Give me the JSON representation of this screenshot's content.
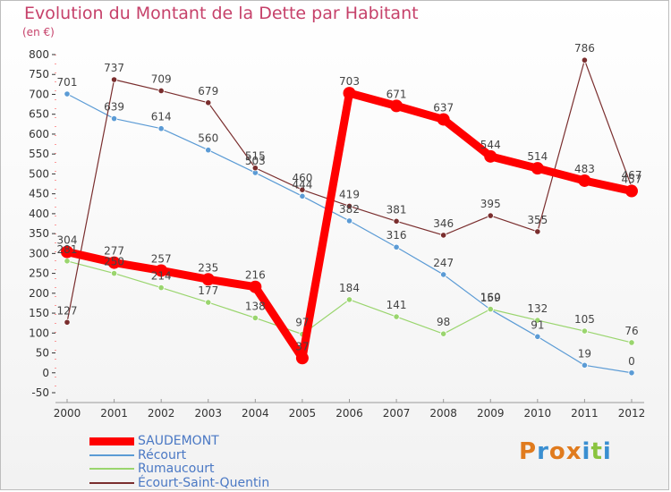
{
  "header": {
    "title": "Evolution du Montant de la Dette par Habitant",
    "unit": "(en €)"
  },
  "logo": {
    "text": "Proxiti",
    "letters": [
      {
        "ch": "P",
        "color": "#e07b1e"
      },
      {
        "ch": "r",
        "color": "#3a8fd1"
      },
      {
        "ch": "o",
        "color": "#e07b1e"
      },
      {
        "ch": "x",
        "color": "#e07b1e"
      },
      {
        "ch": "i",
        "color": "#3a8fd1"
      },
      {
        "ch": "t",
        "color": "#8ac43f"
      },
      {
        "ch": "i",
        "color": "#3a8fd1"
      }
    ]
  },
  "chart_data": {
    "type": "line",
    "title": "Evolution du Montant de la Dette par Habitant",
    "ylabel": "(en €)",
    "x": [
      2000,
      2001,
      2002,
      2003,
      2004,
      2005,
      2006,
      2007,
      2008,
      2009,
      2010,
      2011,
      2012
    ],
    "ylim": [
      -50,
      800
    ],
    "yticks": [
      -50,
      0,
      50,
      100,
      150,
      200,
      250,
      300,
      350,
      400,
      450,
      500,
      550,
      600,
      650,
      700,
      750,
      800
    ],
    "grid": false,
    "legend": "bottom-left",
    "series": [
      {
        "name": "SAUDEMONT",
        "color": "#ff0000",
        "values": [
          304,
          277,
          257,
          235,
          216,
          37,
          703,
          671,
          637,
          544,
          514,
          483,
          457
        ],
        "labels": [
          "304",
          "277",
          "257",
          "235",
          "216",
          "37",
          "703",
          "671",
          "637",
          "544",
          "514",
          "483",
          "457"
        ]
      },
      {
        "name": "Récourt",
        "color": "#5b9bd5",
        "values": [
          701,
          639,
          614,
          560,
          503,
          444,
          382,
          316,
          247,
          159,
          91,
          19,
          0
        ],
        "labels": [
          "701",
          "639",
          "614",
          "560",
          "503",
          "444",
          "382",
          "316",
          "247",
          "159",
          "91",
          "19",
          "0"
        ]
      },
      {
        "name": "Rumaucourt",
        "color": "#9ad56e",
        "values": [
          281,
          250,
          214,
          177,
          138,
          97,
          184,
          141,
          98,
          160,
          132,
          105,
          76
        ],
        "labels": [
          "281",
          "250",
          "214",
          "177",
          "138",
          "97",
          "184",
          "141",
          "98",
          "160",
          "132",
          "105",
          "76"
        ]
      },
      {
        "name": "Écourt-Saint-Quentin",
        "color": "#7a2e2e",
        "values": [
          127,
          737,
          709,
          679,
          515,
          460,
          419,
          381,
          346,
          395,
          355,
          786,
          467
        ],
        "labels": [
          "127",
          "737",
          "709",
          "679",
          "515",
          "460",
          "419",
          "381",
          "346",
          "395",
          "355",
          "786",
          "467"
        ]
      }
    ]
  }
}
